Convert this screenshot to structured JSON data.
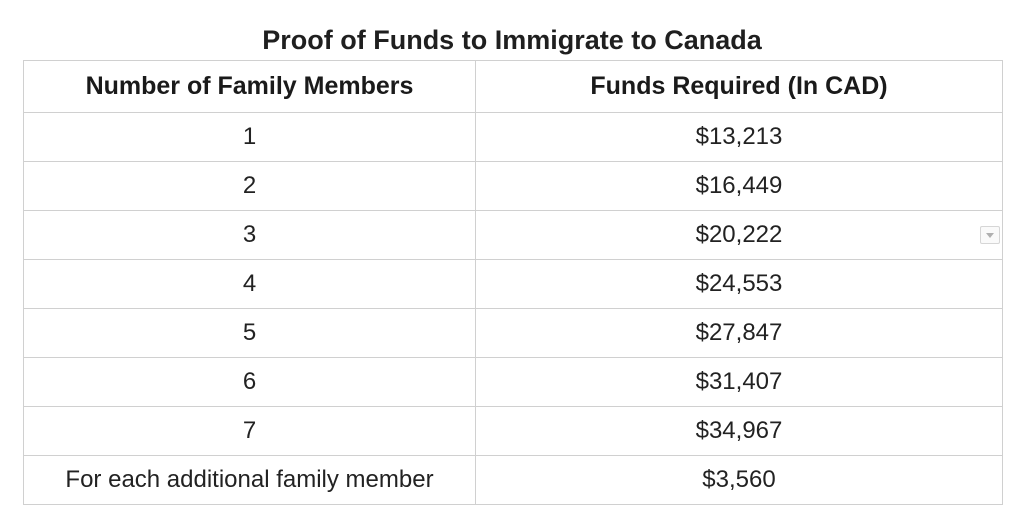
{
  "title": "Proof of Funds to Immigrate to Canada",
  "table": {
    "headers": [
      "Number of Family Members",
      "Funds Required (In CAD)"
    ],
    "rows": [
      [
        "1",
        "$13,213"
      ],
      [
        "2",
        "$16,449"
      ],
      [
        "3",
        "$20,222"
      ],
      [
        "4",
        "$24,553"
      ],
      [
        "5",
        "$27,847"
      ],
      [
        "6",
        "$31,407"
      ],
      [
        "7",
        "$34,967"
      ],
      [
        "For each additional family member",
        "$3,560"
      ]
    ]
  },
  "icons": {
    "row_3_dropdown": "chevron-down-icon"
  }
}
